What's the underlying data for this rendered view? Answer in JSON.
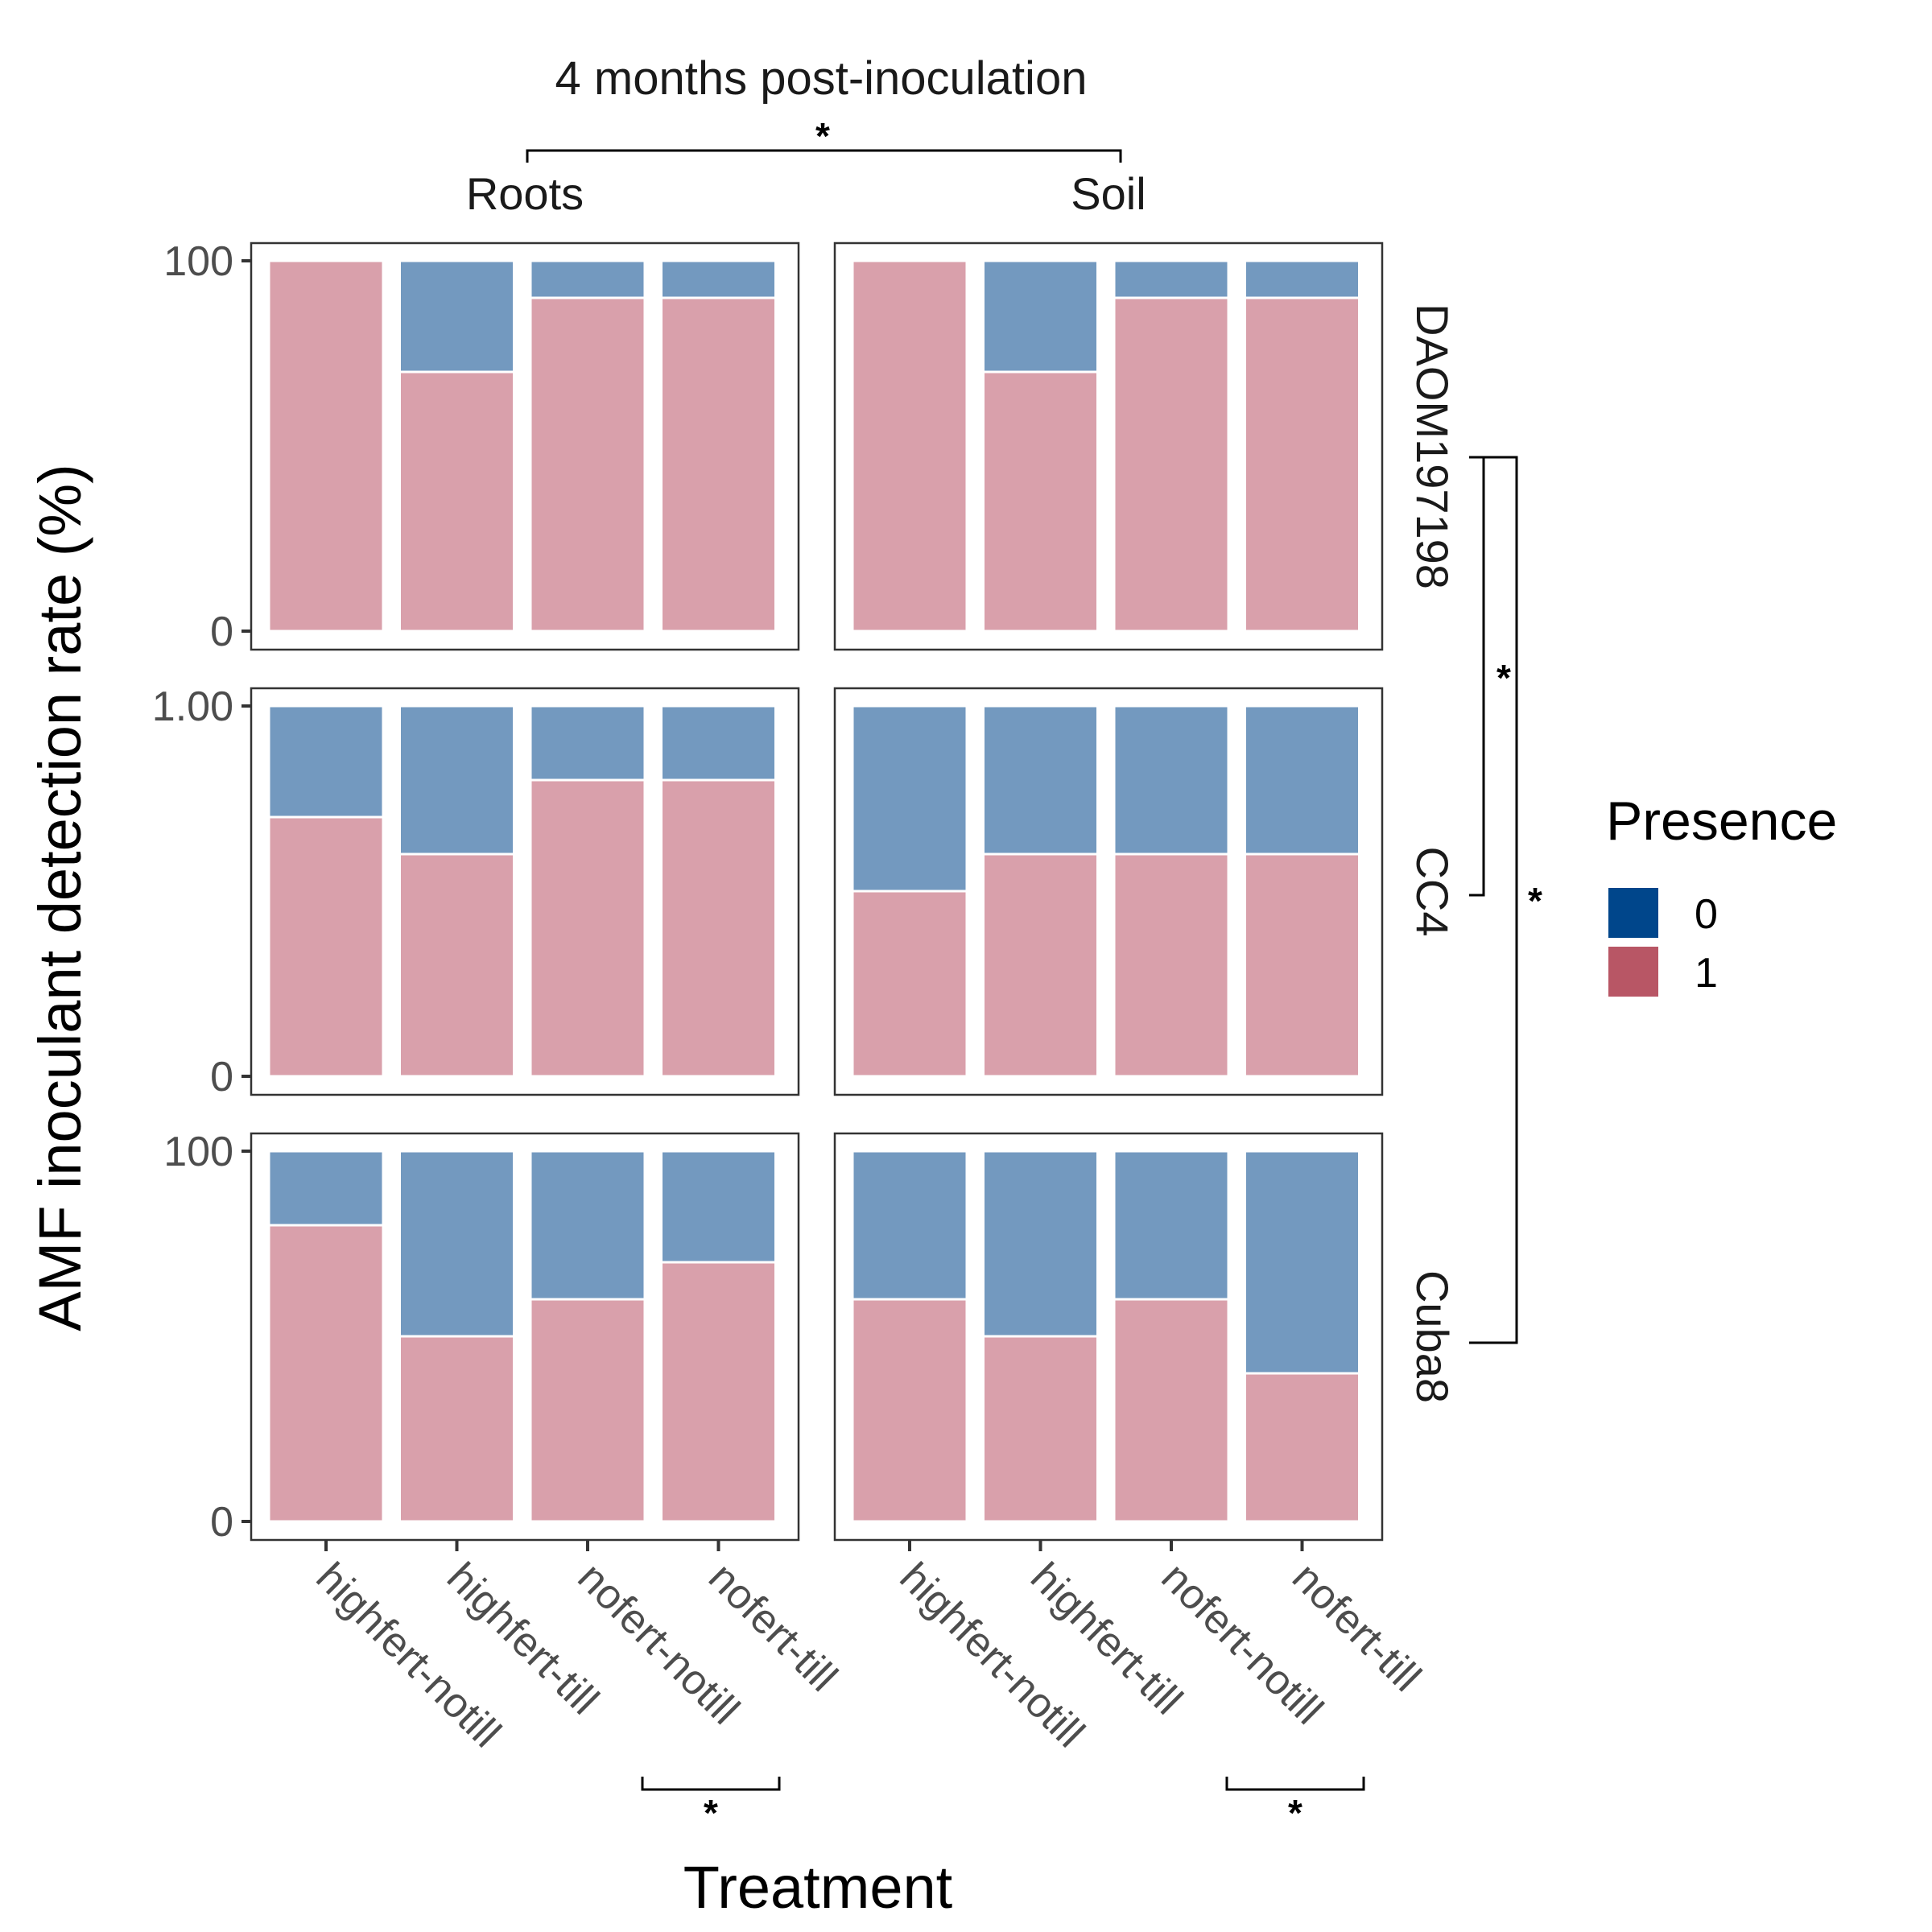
{
  "chart_data": {
    "type": "bar",
    "stacked": true,
    "title": "4 months post-inoculation",
    "xlabel": "Treatment",
    "ylabel": "AMF inoculant detection rate (%)",
    "categories": [
      "highfert-notill",
      "highfert-till",
      "nofert-notill",
      "nofert-till"
    ],
    "column_facets": [
      "Roots",
      "Soil"
    ],
    "row_facets": [
      "DAOM197198",
      "CC4",
      "Cuba8"
    ],
    "row_tick_labels": [
      {
        "top": "100",
        "bottom": "0"
      },
      {
        "top": "1.00",
        "bottom": "0"
      },
      {
        "top": "100",
        "bottom": "0"
      }
    ],
    "ylim": [
      0,
      100
    ],
    "legend": {
      "title": "Presence",
      "position": "right",
      "entries": [
        "0",
        "1"
      ]
    },
    "colors": {
      "0": "#7399bf",
      "1": "#d9a0ab",
      "legend_0": "#00468b",
      "legend_1": "#b85665"
    },
    "panels": [
      {
        "row": "DAOM197198",
        "col": "Roots",
        "presence_1": [
          100,
          70,
          90,
          90
        ]
      },
      {
        "row": "DAOM197198",
        "col": "Soil",
        "presence_1": [
          100,
          70,
          90,
          90
        ]
      },
      {
        "row": "CC4",
        "col": "Roots",
        "presence_1": [
          70,
          60,
          80,
          80
        ]
      },
      {
        "row": "CC4",
        "col": "Soil",
        "presence_1": [
          50,
          60,
          60,
          60
        ]
      },
      {
        "row": "Cuba8",
        "col": "Roots",
        "presence_1": [
          80,
          50,
          60,
          70
        ]
      },
      {
        "row": "Cuba8",
        "col": "Soil",
        "presence_1": [
          60,
          50,
          60,
          40
        ]
      }
    ],
    "annotations": {
      "significance_marker": "*",
      "comparisons": [
        "Roots vs Soil",
        "DAOM197198 vs CC4",
        "DAOM197198 vs Cuba8",
        "Roots: nofert-notill vs nofert-till",
        "Soil: nofert-notill vs nofert-till"
      ]
    }
  }
}
